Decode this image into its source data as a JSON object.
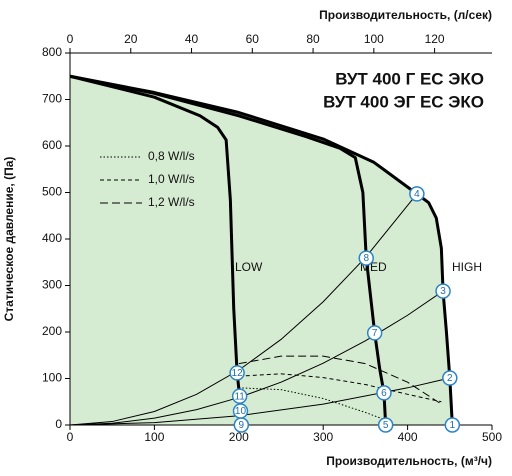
{
  "chart_data": {
    "type": "line",
    "title": [
      "ВУТ 400 Г ЕС ЭКО",
      "ВУТ 400 ЭГ ЕС ЭКО"
    ],
    "x_label": "Производительность, (м³/ч)",
    "x2_label": "Производительность, (л/сек)",
    "y_label": "Статическое давление, (Па)",
    "xlim": [
      0,
      500
    ],
    "xticks": [
      0,
      100,
      200,
      300,
      400,
      500
    ],
    "x2lim": [
      0,
      138.89
    ],
    "x2ticks": [
      0,
      20,
      40,
      60,
      80,
      100,
      120
    ],
    "ylim": [
      0,
      800
    ],
    "yticks": [
      0,
      100,
      200,
      300,
      400,
      500,
      600,
      700,
      800
    ],
    "fill_color": "#d6ecd2",
    "fan_curves": [
      {
        "label": "HIGH",
        "points": [
          [
            0,
            750
          ],
          [
            100,
            715
          ],
          [
            200,
            672
          ],
          [
            300,
            615
          ],
          [
            360,
            565
          ],
          [
            411,
            497
          ],
          [
            425,
            478
          ],
          [
            434,
            445
          ],
          [
            440,
            380
          ],
          [
            442,
            288
          ],
          [
            446,
            200
          ],
          [
            450,
            101
          ],
          [
            453,
            0
          ]
        ]
      },
      {
        "label": "MED",
        "points": [
          [
            0,
            750
          ],
          [
            100,
            713
          ],
          [
            200,
            665
          ],
          [
            280,
            620
          ],
          [
            320,
            595
          ],
          [
            338,
            575
          ],
          [
            347,
            500
          ],
          [
            351,
            359
          ],
          [
            361,
            198
          ],
          [
            367,
            120
          ],
          [
            372,
            69
          ],
          [
            374,
            0
          ]
        ]
      },
      {
        "label": "LOW",
        "points": [
          [
            0,
            750
          ],
          [
            100,
            705
          ],
          [
            154,
            665
          ],
          [
            175,
            640
          ],
          [
            185,
            613
          ],
          [
            190,
            484
          ],
          [
            194,
            250
          ],
          [
            198,
            112
          ],
          [
            201,
            62
          ],
          [
            202,
            30
          ],
          [
            203,
            0
          ]
        ]
      }
    ],
    "system_curves": [
      {
        "points": [
          [
            0,
            0
          ],
          [
            50,
            7.4
          ],
          [
            100,
            29
          ],
          [
            150,
            66
          ],
          [
            200,
            118
          ],
          [
            250,
            184
          ],
          [
            300,
            265
          ],
          [
            350,
            360
          ],
          [
            411,
            497
          ]
        ]
      },
      {
        "points": [
          [
            0,
            0
          ],
          [
            50,
            3.7
          ],
          [
            100,
            14.7
          ],
          [
            150,
            33
          ],
          [
            200,
            59
          ],
          [
            250,
            92
          ],
          [
            300,
            133
          ],
          [
            350,
            181
          ],
          [
            400,
            236
          ],
          [
            442,
            288
          ]
        ]
      },
      {
        "points": [
          [
            0,
            0
          ],
          [
            100,
            5
          ],
          [
            200,
            20
          ],
          [
            300,
            45
          ],
          [
            400,
            80
          ],
          [
            450,
            101
          ]
        ]
      }
    ],
    "series": [
      {
        "name": "0,8 W/l/s",
        "dash": "1.5 2",
        "points": [
          [
            200,
            80
          ],
          [
            250,
            76
          ],
          [
            300,
            57
          ],
          [
            350,
            27
          ],
          [
            375,
            10
          ]
        ]
      },
      {
        "name": "1,0 W/l/s",
        "dash": "4 3",
        "points": [
          [
            200,
            105
          ],
          [
            250,
            110
          ],
          [
            300,
            102
          ],
          [
            350,
            87
          ],
          [
            400,
            66
          ],
          [
            440,
            50
          ]
        ]
      },
      {
        "name": "1,2 W/l/s",
        "dash": "8 4",
        "points": [
          [
            200,
            132
          ],
          [
            250,
            148
          ],
          [
            300,
            148
          ],
          [
            350,
            132
          ],
          [
            400,
            92
          ],
          [
            440,
            45
          ]
        ]
      }
    ],
    "markers": [
      {
        "label": "1",
        "x": 453,
        "y": 0
      },
      {
        "label": "2",
        "x": 450,
        "y": 101
      },
      {
        "label": "3",
        "x": 442,
        "y": 288
      },
      {
        "label": "4",
        "x": 411,
        "y": 497
      },
      {
        "label": "5",
        "x": 374,
        "y": 0
      },
      {
        "label": "6",
        "x": 372,
        "y": 69
      },
      {
        "label": "7",
        "x": 361,
        "y": 198
      },
      {
        "label": "8",
        "x": 351,
        "y": 359
      },
      {
        "label": "9",
        "x": 203,
        "y": 0
      },
      {
        "label": "10",
        "x": 202,
        "y": 30
      },
      {
        "label": "11",
        "x": 201,
        "y": 62
      },
      {
        "label": "12",
        "x": 198,
        "y": 112
      }
    ]
  }
}
